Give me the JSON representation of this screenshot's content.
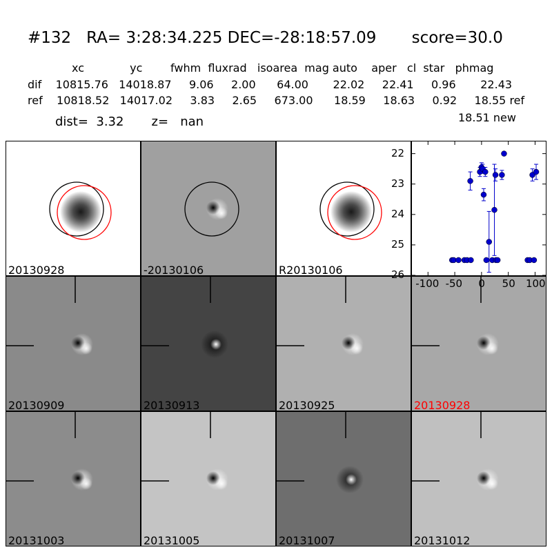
{
  "header": {
    "title": "#132   RA= 3:28:34.225 DEC=-28:18:57.09       score=30.0",
    "col_row": "xc             yc        fwhm  fluxrad   isoarea  mag auto    aper   cl  star   phmag",
    "dif_row": "dif    10815.76   14018.87     9.06     2.00      64.00       22.02     22.41     0.96       22.43",
    "ref_row": "ref    10818.52   14017.02     3.83     2.65     673.00      18.59     18.63     0.92     18.55 ref",
    "new_row": "18.51 new",
    "dist_row": "dist=  3.32       z=   nan"
  },
  "panels": [
    {
      "label": "20130928",
      "bg": "#ffffff",
      "type": "ref",
      "circles": true
    },
    {
      "label": "-20130106",
      "bg": "#a0a0a0",
      "type": "dipole",
      "circles": true
    },
    {
      "label": "R20130106",
      "bg": "#ffffff",
      "type": "ref",
      "circles": true
    },
    {
      "label": "20130909",
      "bg": "#8a8a8a",
      "type": "dipole",
      "crosshair": true
    },
    {
      "label": "20130913",
      "bg": "#444444",
      "type": "dipole2",
      "crosshair": true
    },
    {
      "label": "20130925",
      "bg": "#b0b0b0",
      "type": "dipole",
      "crosshair": true
    },
    {
      "label": "20130928",
      "bg": "#a8a8a8",
      "type": "dipole",
      "crosshair": true,
      "label_color": "#ff0000"
    },
    {
      "label": "20131003",
      "bg": "#8c8c8c",
      "type": "dipole",
      "crosshair": true
    },
    {
      "label": "20131005",
      "bg": "#c4c4c4",
      "type": "dipole",
      "crosshair": true
    },
    {
      "label": "20131007",
      "bg": "#6e6e6e",
      "type": "dipole2",
      "crosshair": true
    },
    {
      "label": "20131012",
      "bg": "#c0c0c0",
      "type": "dipole",
      "crosshair": true
    }
  ],
  "chart_data": {
    "type": "scatter",
    "xlim": [
      -130,
      120
    ],
    "ylim": [
      26,
      21.6
    ],
    "x_ticks": [
      "-100",
      "-50",
      "0",
      "50",
      "100"
    ],
    "y_ticks": [
      "22",
      "23",
      "24",
      "25",
      "26"
    ],
    "color": "#0000cc",
    "points": [
      {
        "x": -55,
        "y": 25.5,
        "err": 0.0
      },
      {
        "x": -52,
        "y": 25.5,
        "err": 0.0
      },
      {
        "x": -43,
        "y": 25.5,
        "err": 0.0
      },
      {
        "x": -32,
        "y": 25.5,
        "err": 0.0
      },
      {
        "x": -27,
        "y": 25.5,
        "err": 0.0
      },
      {
        "x": -20,
        "y": 25.5,
        "err": 0.0
      },
      {
        "x": -21,
        "y": 22.9,
        "err": 0.3
      },
      {
        "x": -3,
        "y": 22.6,
        "err": 0.15
      },
      {
        "x": 0,
        "y": 22.45,
        "err": 0.15
      },
      {
        "x": 2,
        "y": 22.5,
        "err": 0.15
      },
      {
        "x": 4,
        "y": 23.35,
        "err": 0.2
      },
      {
        "x": 7,
        "y": 22.6,
        "err": 0.15
      },
      {
        "x": 9,
        "y": 25.5,
        "err": 0.0
      },
      {
        "x": 14,
        "y": 24.9,
        "err": 1.0
      },
      {
        "x": 20,
        "y": 25.5,
        "err": 0.0
      },
      {
        "x": 24,
        "y": 23.85,
        "err": 1.5
      },
      {
        "x": 26,
        "y": 22.7,
        "err": 0.2
      },
      {
        "x": 27,
        "y": 25.5,
        "err": 0.0
      },
      {
        "x": 30,
        "y": 25.5,
        "err": 0.0
      },
      {
        "x": 38,
        "y": 22.7,
        "err": 0.15
      },
      {
        "x": 42,
        "y": 22.0,
        "err": 0.05
      },
      {
        "x": 86,
        "y": 25.5,
        "err": 0.0
      },
      {
        "x": 90,
        "y": 25.5,
        "err": 0.0
      },
      {
        "x": 95,
        "y": 22.7,
        "err": 0.2
      },
      {
        "x": 98,
        "y": 25.5,
        "err": 0.0
      },
      {
        "x": 102,
        "y": 22.6,
        "err": 0.25
      }
    ]
  }
}
